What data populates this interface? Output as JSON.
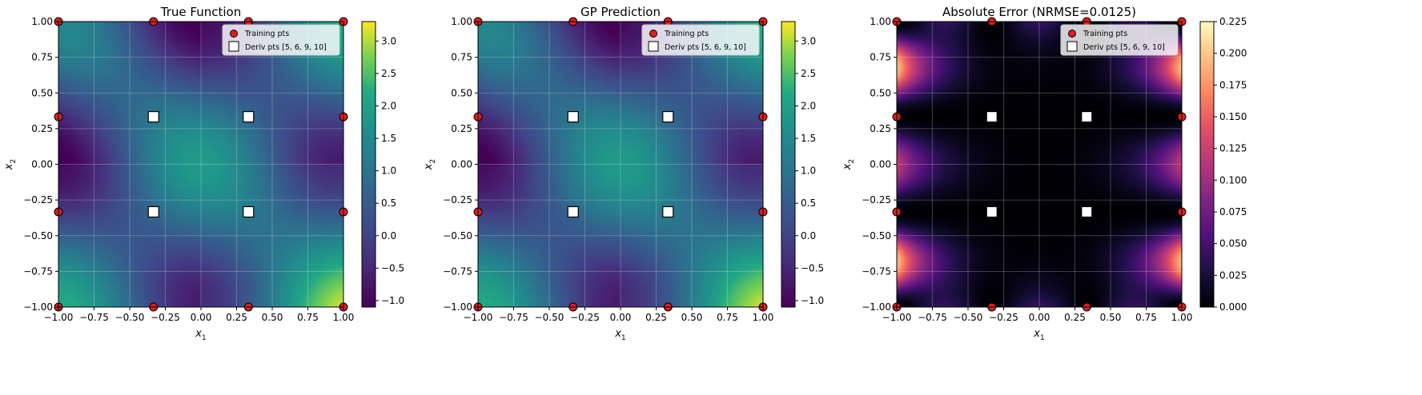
{
  "colors": {
    "training_face": "#dd1f1f",
    "training_edge": "#000000",
    "deriv_face": "#ffffff",
    "deriv_edge": "#000000",
    "grid": "#ffffff",
    "axis": "#000000"
  },
  "chart_data": [
    {
      "type": "heatmap",
      "title": "True Function",
      "xlabel": "x",
      "xlabel_sub": "1",
      "ylabel": "x",
      "ylabel_sub": "2",
      "xlim": [
        -1,
        1
      ],
      "ylim": [
        -1,
        1
      ],
      "xticks": [
        "−1.00",
        "−0.75",
        "−0.50",
        "−0.25",
        "0.00",
        "0.25",
        "0.50",
        "0.75",
        "1.00"
      ],
      "yticks": [
        "−1.00",
        "−0.75",
        "−0.50",
        "−0.25",
        "0.00",
        "0.25",
        "0.50",
        "0.75",
        "1.00"
      ],
      "colormap": "viridis",
      "field": "true",
      "clim": [
        -1.1,
        3.3
      ],
      "colorbar_ticks": [
        -1.0,
        -0.5,
        0.0,
        0.5,
        1.0,
        1.5,
        2.0,
        2.5,
        3.0
      ],
      "colorbar_labels": [
        "−1.0",
        "−0.5",
        "0.0",
        "0.5",
        "1.0",
        "1.5",
        "2.0",
        "2.5",
        "3.0"
      ],
      "grid": true,
      "legend": {
        "position": "top-right",
        "entries": [
          "Training pts",
          "Deriv pts [5, 6, 9, 10]"
        ]
      }
    },
    {
      "type": "heatmap",
      "title": "GP Prediction",
      "xlabel": "x",
      "xlabel_sub": "1",
      "ylabel": "x",
      "ylabel_sub": "2",
      "xlim": [
        -1,
        1
      ],
      "ylim": [
        -1,
        1
      ],
      "xticks": [
        "−1.00",
        "−0.75",
        "−0.50",
        "−0.25",
        "0.00",
        "0.25",
        "0.50",
        "0.75",
        "1.00"
      ],
      "yticks": [
        "−1.00",
        "−0.75",
        "−0.50",
        "−0.25",
        "0.00",
        "0.25",
        "0.50",
        "0.75",
        "1.00"
      ],
      "colormap": "viridis",
      "field": "pred",
      "clim": [
        -1.1,
        3.3
      ],
      "colorbar_ticks": [
        -1.0,
        -0.5,
        0.0,
        0.5,
        1.0,
        1.5,
        2.0,
        2.5,
        3.0
      ],
      "colorbar_labels": [
        "−1.0",
        "−0.5",
        "0.0",
        "0.5",
        "1.0",
        "1.5",
        "2.0",
        "2.5",
        "3.0"
      ],
      "grid": true,
      "legend": {
        "position": "top-right",
        "entries": [
          "Training pts",
          "Deriv pts [5, 6, 9, 10]"
        ]
      }
    },
    {
      "type": "heatmap",
      "title": "Absolute Error (NRMSE=0.0125)",
      "xlabel": "x",
      "xlabel_sub": "1",
      "ylabel": "x",
      "ylabel_sub": "2",
      "xlim": [
        -1,
        1
      ],
      "ylim": [
        -1,
        1
      ],
      "xticks": [
        "−1.00",
        "−0.75",
        "−0.50",
        "−0.25",
        "0.00",
        "0.25",
        "0.50",
        "0.75",
        "1.00"
      ],
      "yticks": [
        "−1.00",
        "−0.75",
        "−0.50",
        "−0.25",
        "0.00",
        "0.25",
        "0.50",
        "0.75",
        "1.00"
      ],
      "colormap": "magma",
      "field": "error",
      "clim": [
        0,
        0.225
      ],
      "colorbar_ticks": [
        0.0,
        0.025,
        0.05,
        0.075,
        0.1,
        0.125,
        0.15,
        0.175,
        0.2,
        0.225
      ],
      "colorbar_labels": [
        "0.000",
        "0.025",
        "0.050",
        "0.075",
        "0.100",
        "0.125",
        "0.150",
        "0.175",
        "0.200",
        "0.225"
      ],
      "grid": true,
      "legend": {
        "position": "top-right",
        "entries": [
          "Training pts",
          "Deriv pts [5, 6, 9, 10]"
        ]
      }
    }
  ],
  "training_points": [
    [
      -1,
      -1
    ],
    [
      -0.333,
      -1
    ],
    [
      0.333,
      -1
    ],
    [
      1,
      -1
    ],
    [
      -1,
      -0.333
    ],
    [
      1,
      -0.333
    ],
    [
      -1,
      0.333
    ],
    [
      1,
      0.333
    ],
    [
      -1,
      1
    ],
    [
      -0.333,
      1
    ],
    [
      0.333,
      1
    ],
    [
      1,
      1
    ]
  ],
  "deriv_points": [
    [
      -0.333,
      -0.333
    ],
    [
      0.333,
      -0.333
    ],
    [
      -0.333,
      0.333
    ],
    [
      0.333,
      0.333
    ]
  ]
}
